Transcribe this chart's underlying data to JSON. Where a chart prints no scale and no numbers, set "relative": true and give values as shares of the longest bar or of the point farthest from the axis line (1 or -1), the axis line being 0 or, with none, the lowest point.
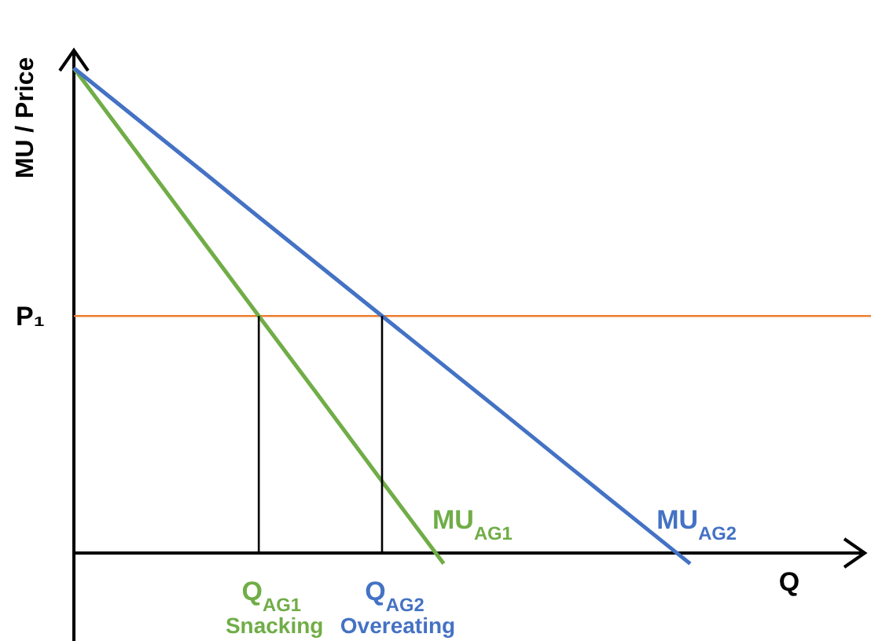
{
  "chart_data": {
    "type": "line",
    "relative": true,
    "xlabel": "Q",
    "ylabel": "MU / Price",
    "legend": false,
    "marker": "none",
    "line_style": "solid",
    "categories": [
      null,
      null,
      null,
      null,
      null,
      null,
      null,
      null,
      null,
      null,
      null,
      null,
      null
    ],
    "series": [
      {
        "name": "MU$_{AG1}$",
        "color": "#70ad47",
        "values": [
          1,
          0.83,
          0.659,
          0.489,
          0.319,
          0.148,
          -0.022,
          null,
          null,
          null,
          null,
          null,
          null
        ]
      },
      {
        "name": "MU$_{AG2}$",
        "color": "#4472c4",
        "values": [
          1,
          0.898,
          0.796,
          0.693,
          0.591,
          0.489,
          0.387,
          0.285,
          0.182,
          0.08,
          -0.022,
          null,
          null
        ]
      }
    ],
    "ref_lines": [
      {
        "axis": "y",
        "value": 0.489,
        "label": "P₁",
        "color": "#ed7d31"
      }
    ],
    "annotations": [
      "Q$_{AG1}$",
      "Snacking",
      "Q$_{AG2}$",
      "Overeating"
    ]
  }
}
